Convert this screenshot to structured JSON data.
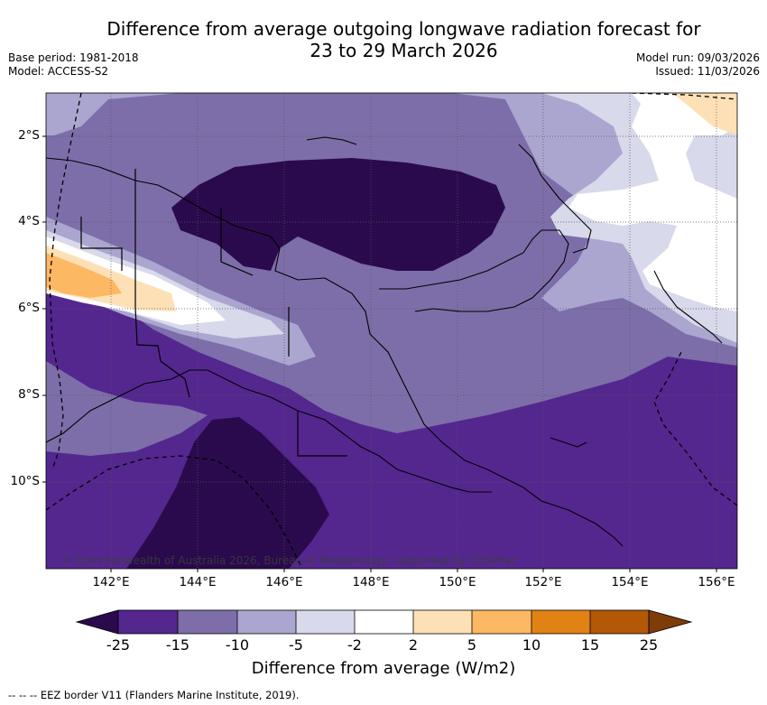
{
  "title": {
    "line1": "Difference from average outgoing longwave radiation forecast for",
    "line2": "23 to 29 March 2026"
  },
  "meta": {
    "base_period": "Base period: 1981-2018",
    "model": "Model: ACCESS-S2",
    "model_run": "Model run: 09/03/2026",
    "issued": "Issued: 11/03/2026"
  },
  "axes": {
    "x_ticks": [
      "142°E",
      "144°E",
      "146°E",
      "148°E",
      "150°E",
      "152°E",
      "154°E",
      "156°E"
    ],
    "y_ticks": [
      "2°S",
      "4°S",
      "6°S",
      "8°S",
      "10°S"
    ]
  },
  "colorbar": {
    "label": "Difference from average (W/m2)",
    "ticks": [
      "-25",
      "-15",
      "-10",
      "-5",
      "-2",
      "2",
      "5",
      "10",
      "15",
      "25"
    ],
    "colors": [
      "#2a0a4d",
      "#54278f",
      "#7d6ea9",
      "#aba6d0",
      "#d8d9ea",
      "#ffffff",
      "#fee0b6",
      "#fdb863",
      "#e08214",
      "#b35806",
      "#7f3b08"
    ]
  },
  "credit": "© Commonwealth of Australia 2026, Bureau of Meteorology, supported by COSPPac",
  "footer": "-- --  -- EEZ border V11 (Flanders Marine Institute, 2019)."
}
